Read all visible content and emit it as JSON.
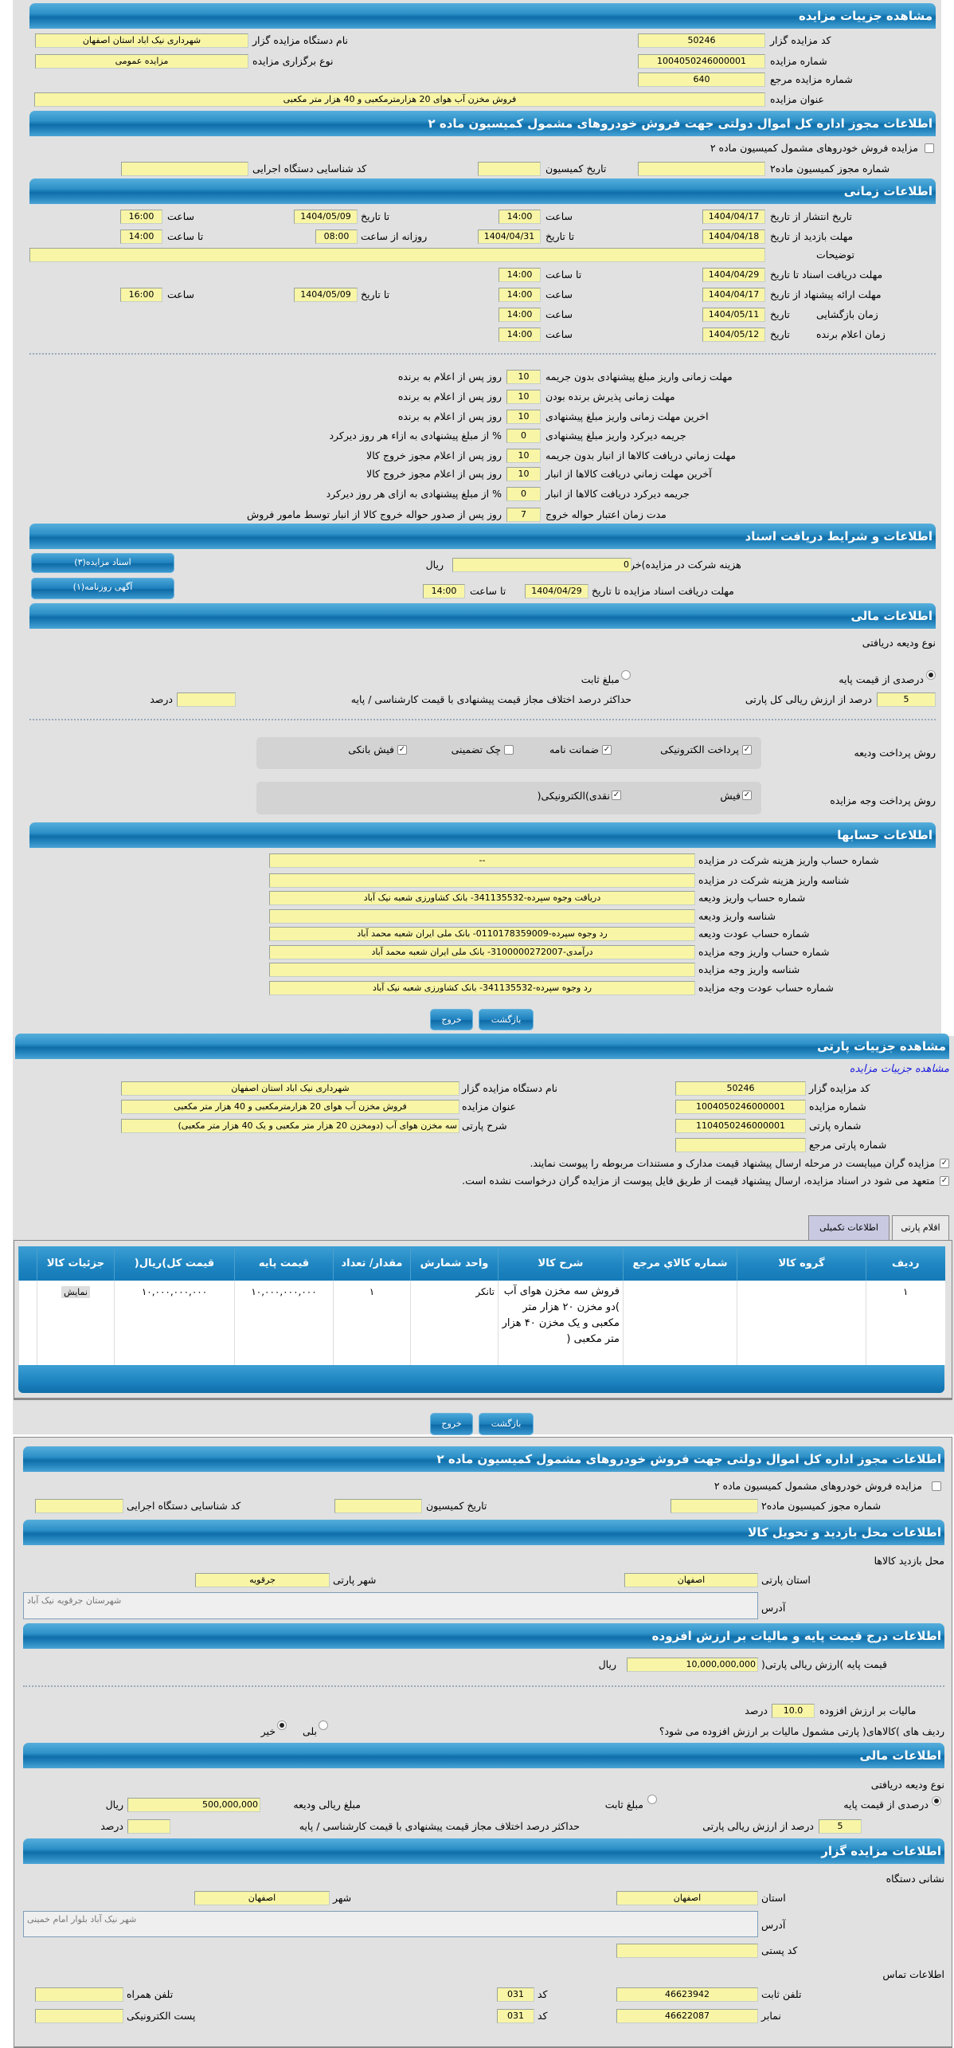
{
  "auction": {
    "title": "مشاهده جزییات مزایده",
    "code_label": "کد مزایده گزار",
    "code": "50246",
    "org_label": "نام دستگاه مزایده گزار",
    "org": "شهرداری نیک اباد استان اصفهان",
    "number_label": "شماره مزایده",
    "number": "1004050246000001",
    "type_label": "نوع برگزاری مزایده",
    "type": "مزایده عمومی",
    "ref_label": "شماره مزایده مرجع",
    "ref": "640",
    "name_label": "عنوان مزایده",
    "name": "فروش مخزن آب هوای 20 هزارمترمکعبی و 40 هزار متر مکعبی"
  },
  "permit": {
    "title": "اطلاعات مجوز اداره کل اموال دولتی جهت فروش خودروهای مشمول کمیسیون ماده ۲",
    "checkbox_label": "مزایده فروش خودروهای مشمول کمیسیون ماده ۲",
    "checked": false,
    "permit_no_label": "شماره مجوز کمیسیون ماده۲",
    "permit_no": "",
    "date_label": "تاریخ کمیسیون",
    "date": "",
    "exec_label": "کد شناسایی دستگاه اجرایی",
    "exec": ""
  },
  "timing": {
    "title": "اطلاعات زمانی",
    "publish_label": "تاریخ انتشار  از تاریخ",
    "publish_from": "1404/04/17",
    "time_label": "ساعت",
    "publish_from_time": "14:00",
    "to_date_label": "تا تاریخ",
    "publish_to": "1404/05/09",
    "publish_to_time": "16:00",
    "visit_label": "مهلت بازدید  از تاریخ",
    "visit_from": "1404/04/18",
    "visit_to": "1404/04/31",
    "daily_from_label": "روزانه از ساعت",
    "visit_daily_from": "08:00",
    "to_time_label": "تا ساعت",
    "visit_daily_to": "14:00",
    "desc_label": "توضیحات",
    "desc": "",
    "docs_label": "مهلت دریافت اسناد  تا تاریخ",
    "docs_to": "1404/04/29",
    "docs_time": "14:00",
    "offer_label": "مهلت ارائه پیشنهاد  از تاریخ",
    "offer_from": "1404/04/17",
    "offer_from_time": "14:00",
    "offer_to": "1404/05/09",
    "offer_to_time": "16:00",
    "open_label": "زمان بازگشایی",
    "date_label": "تاریخ",
    "open_date": "1404/05/11",
    "open_time": "14:00",
    "winner_label": "زمان اعلام برنده",
    "winner_date": "1404/05/12",
    "winner_time": "14:00"
  },
  "deadlines": [
    {
      "label": "مهلت زمانی واریز مبلغ پیشنهادی بدون جریمه",
      "value": "10",
      "suffix": "روز پس از اعلام به برنده"
    },
    {
      "label": "مهلت زمانی پذیرش برنده بودن",
      "value": "10",
      "suffix": "روز پس از اعلام به برنده"
    },
    {
      "label": "اخرین مهلت زمانی واریز مبلغ پیشنهادی",
      "value": "10",
      "suffix": "روز پس از اعلام به برنده"
    },
    {
      "label": "جریمه دیرکرد واریز مبلغ پیشنهادی",
      "value": "0",
      "suffix": "% از مبلغ پیشنهادی به ازاء هر روز دیرکرد"
    },
    {
      "label": "مهلت زماني دريافت کالاها از انبار بدون جريمه",
      "value": "10",
      "suffix": "روز پس از اعلام مجوز خروج کالا"
    },
    {
      "label": "آخرين مهلت زماني دريافت کالاها از انبار",
      "value": "10",
      "suffix": "روز پس از اعلام مجوز خروج کالا"
    },
    {
      "label": "جریمه دیرکرد دریافت کالاها از انبار",
      "value": "0",
      "suffix": "% از مبلغ پیشنهادی به ازای هر روز دیرکرد"
    },
    {
      "label": "مدت زمان اعتبار حواله خروج",
      "value": "7",
      "suffix": "روز پس از صدور حواله خروج کالا از انبار توسط مامور فروش"
    }
  ],
  "docs": {
    "title": "اطلاعات و شرایط دریافت اسناد",
    "fee_label": "هزینه شرکت در مزایده)خرید اسناد(",
    "fee": "0",
    "rial": "ریال",
    "deadline_label": "مهلت دریافت اسناد مزایده تا تاریخ",
    "deadline_date": "1404/04/29",
    "to_time_label": "تا ساعت",
    "deadline_time": "14:00",
    "docs_button": "اسناد مزایده(۳)",
    "ad_button": "آگهی روزنامه(۱)"
  },
  "finance": {
    "title": "اطلاعات مالی",
    "deposit_type_label": "نوع ودیعه دریافتی",
    "percent_option": "درصدی از قیمت پایه",
    "fixed_option": "مبلغ ثابت",
    "selected": "percent",
    "percent_value": "5",
    "percent_text": "درصد از ارزش ریالی کل پارتی",
    "max_diff_label": "حداکثر درصد اختلاف مجاز قیمت پیشنهادی با قیمت کارشناسی / پایه",
    "max_diff": "",
    "percent_unit": "درصد",
    "deposit_methods_label": "روش پرداخت ودیعه",
    "deposit_methods": [
      {
        "label": "پرداخت الکترونیکی",
        "checked": true
      },
      {
        "label": "ضمانت نامه",
        "checked": true
      },
      {
        "label": "چک تضمینی",
        "checked": false
      },
      {
        "label": "فیش بانکی",
        "checked": true
      }
    ],
    "payment_methods_label": "روش پرداخت وجه مزایده",
    "payment_methods": [
      {
        "label": "فیش",
        "checked": true
      },
      {
        "label": "نقدی)الکترونیکی(",
        "checked": true
      }
    ]
  },
  "accounts": {
    "title": "اطلاعات حسابها",
    "rows": [
      {
        "label": "شماره حساب واریز هزینه شرکت در مزایده",
        "value": "--"
      },
      {
        "label": "شناسه واریز هزینه شرکت در مزایده",
        "value": ""
      },
      {
        "label": "شماره حساب واریز ودیعه",
        "value": "دریافت وجوه سپرده-341135532- بانک کشاورزی شعبه نیک آباد"
      },
      {
        "label": "شناسه واریز ودیعه",
        "value": ""
      },
      {
        "label": "شماره حساب عودت ودیعه",
        "value": "رد وجوه سپرده-0110178359009- بانک ملی ایران شعبه محمد آباد"
      },
      {
        "label": "شماره حساب واریز وجه مزایده",
        "value": "درآمدی-3100000272007- بانک ملی ایران شعبه محمد آباد"
      },
      {
        "label": "شناسه واریز وجه مزایده",
        "value": ""
      },
      {
        "label": "شماره حساب عودت وجه مزایده",
        "value": "رد وجوه سپرده-341135532- بانک کشاورزی شعبه نیک آباد"
      }
    ]
  },
  "buttons": {
    "back": "بازگشت",
    "exit": "خروج"
  },
  "party": {
    "title": "مشاهده جزییات پارتی",
    "auction_link": "مشاهده جزییات مزایده",
    "code_label": "کد مزایده گزار",
    "code": "50246",
    "org_label": "نام دستگاه مزایده گزار",
    "org": "شهرداری نیک اباد استان اصفهان",
    "number_label": "شماره مزایده",
    "number": "1004050246000001",
    "name_label": "عنوان مزایده",
    "name": "فروش مخزن آب هوای 20 هزارمترمکعبی و 40 هزار متر مکعبی",
    "party_no_label": "شماره پارتی",
    "party_no": "1104050246000001",
    "desc_label": "شرح پارتی",
    "desc": "سه مخزن هوای آب (دومخزن 20 هزار متر مکعبی و یک 40 هزار متر مکعبی)",
    "party_ref_label": "شماره پارتی مرجع",
    "party_ref": "",
    "check1": "مزایده گران میبایست در مرحله ارسال پیشنهاد قیمت مدارک و مستندات مربوطه را پیوست نمایند.",
    "check2": "متعهد می شود در اسناد مزایده، ارسال پیشنهاد قیمت از طریق فایل پیوست از مزایده گران درخواست نشده است.",
    "tabs": [
      {
        "label": "اقلام پارتی"
      },
      {
        "label": "اطلاعات تکمیلی"
      }
    ],
    "columns": [
      "ردیف",
      "گروه کالا",
      "شماره کالاي مرجع",
      "شرح کالا",
      "واحد شمارش",
      "مقدار/ تعداد",
      "قیمت پایه",
      "قیمت کل)ریال(",
      "جزئیات کالا"
    ],
    "rows": [
      {
        "row": "۱",
        "group": "",
        "ref": "",
        "desc": "فروش سه مخزن هوای آب )دو مخزن ۲۰ هزار متر مکعبی و یک مخزن ۴۰ هزار متر مکعبی (",
        "unit": "تانکر",
        "qty": "۱",
        "base": "۱۰,۰۰۰,۰۰۰,۰۰۰",
        "total": "۱۰,۰۰۰,۰۰۰,۰۰۰",
        "details": "نمایش"
      }
    ]
  },
  "extra": {
    "visit_title": "اطلاعات محل بازدید و تحویل کالا",
    "visit_place_label": "محل بازدید کالاها",
    "province_label": "استان پارتی",
    "province": "اصفهان",
    "city_label": "شهر پارتی",
    "city": "جرقویه",
    "address_label": "آدرس",
    "address": "شهرستان جرقویه نیک آباد",
    "price_title": "اطلاعات درج قیمت پایه و مالیات بر ارزش افزوده",
    "base_price_label": "قیمت پایه )ارزش ریالی پارتی(",
    "base_price": "10,000,000,000",
    "rial": "ریال",
    "vat_label": "مالیات بر ارزش افزوده",
    "vat": "10.0",
    "percent_unit": "درصد",
    "vat_question": "ردیف های )کالاهای( پارتی مشمول مالیات بر ارزش افزوده می شود؟",
    "yes": "بلی",
    "no": "خیر",
    "vat_selected": "no",
    "finance_title": "اطلاعات مالی",
    "deposit_type_label": "نوع ودیعه دریافتی",
    "percent_option": "درصدی از قیمت پایه",
    "fixed_option": "مبلغ ثابت",
    "deposit_amount_label": "مبلغ ریالی ودیعه",
    "deposit_amount": "500,000,000",
    "percent_value": "5",
    "percent_text": "درصد از ارزش ریالی پارتی",
    "max_diff_label": "حداکثر درصد اختلاف مجاز قیمت پیشنهادی با قیمت کارشناسی / پایه",
    "max_diff": "",
    "org_title": "اطلاعات مزایده گزار",
    "org_address_label": "نشانی دستگاه",
    "org_province_label": "استان",
    "org_province": "اصفهان",
    "org_city_label": "شهر",
    "org_city": "اصفهان",
    "org_address": "شهر نیک آباد بلوار امام خمینی",
    "postal_label": "کد پستی",
    "postal": "",
    "contact_label": "اطلاعات تماس",
    "phone_label": "تلفن ثابت",
    "phone": "46623942",
    "code_label": "کد",
    "phone_code": "031",
    "mobile_label": "تلفن همراه",
    "mobile": "",
    "fax_label": "نمابر",
    "fax": "46622087",
    "fax_code": "031",
    "email_label": "پست الکترونیکی",
    "email": ""
  }
}
